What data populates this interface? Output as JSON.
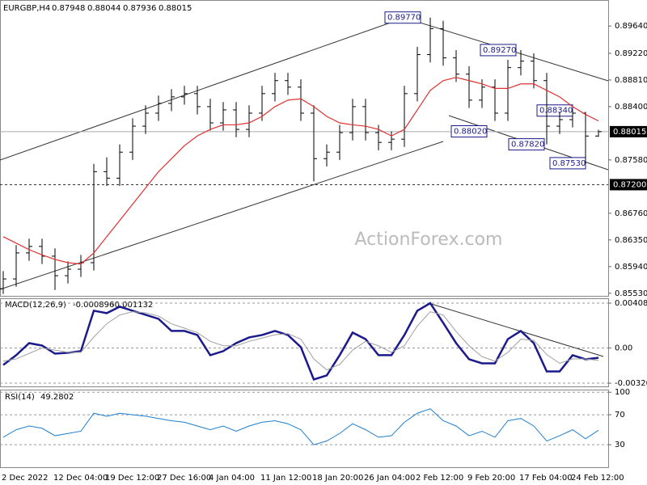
{
  "chart_data": [
    {
      "type": "ohlc",
      "title": "EURGBP,H4",
      "color": "#000000",
      "grid": false,
      "categories": [
        "2 Dec 2022",
        null,
        null,
        null,
        "12 Dec 04:00",
        null,
        null,
        null,
        "19 Dec 12:00",
        null,
        null,
        null,
        "27 Dec 16:00",
        null,
        null,
        null,
        "4 Jan 04:00",
        null,
        null,
        null,
        "11 Jan 12:00",
        null,
        null,
        null,
        "18 Jan 20:00",
        null,
        null,
        null,
        "26 Jan 04:00",
        null,
        null,
        null,
        "2 Feb 12:00",
        null,
        null,
        null,
        "9 Feb 20:00",
        null,
        null,
        null,
        "17 Feb 04:00",
        null,
        null,
        null,
        "24 Feb 12:00",
        null,
        null
      ],
      "open": [
        0.856,
        0.8575,
        0.8615,
        0.8625,
        0.861,
        0.858,
        0.859,
        0.86,
        0.874,
        0.873,
        0.877,
        0.881,
        0.883,
        0.8845,
        0.8855,
        0.886,
        0.884,
        0.8815,
        0.8835,
        0.8805,
        0.883,
        0.886,
        0.888,
        0.887,
        0.883,
        0.876,
        0.877,
        0.88,
        0.884,
        0.88,
        0.8785,
        0.879,
        0.886,
        0.892,
        0.896,
        0.8915,
        0.889,
        0.885,
        0.887,
        0.883,
        0.89,
        0.891,
        0.888,
        0.881,
        0.882,
        0.883,
        0.87948
      ],
      "high": [
        0.8587,
        0.8627,
        0.8637,
        0.8637,
        0.8622,
        0.8602,
        0.8612,
        0.8752,
        0.8762,
        0.8782,
        0.8822,
        0.8842,
        0.8857,
        0.8867,
        0.8872,
        0.8872,
        0.8852,
        0.8847,
        0.8847,
        0.8842,
        0.8872,
        0.8892,
        0.8892,
        0.8882,
        0.8842,
        0.8782,
        0.8812,
        0.8852,
        0.8852,
        0.8812,
        0.8802,
        0.8872,
        0.8932,
        0.8977,
        0.8972,
        0.8927,
        0.8902,
        0.8882,
        0.8882,
        0.8912,
        0.8927,
        0.8922,
        0.8892,
        0.8832,
        0.8834,
        0.8832,
        0.88044
      ],
      "low": [
        0.8552,
        0.8563,
        0.8603,
        0.8598,
        0.8558,
        0.8568,
        0.8578,
        0.8588,
        0.8718,
        0.8718,
        0.8758,
        0.8798,
        0.8818,
        0.8833,
        0.8843,
        0.8828,
        0.8803,
        0.8803,
        0.8793,
        0.8793,
        0.8818,
        0.8848,
        0.8858,
        0.8818,
        0.8725,
        0.8748,
        0.8758,
        0.8788,
        0.8788,
        0.8773,
        0.8773,
        0.8778,
        0.8848,
        0.8908,
        0.8903,
        0.8878,
        0.8838,
        0.8838,
        0.8818,
        0.8818,
        0.8888,
        0.8868,
        0.8782,
        0.8798,
        0.8808,
        0.8753,
        0.87936
      ],
      "close": [
        0.8575,
        0.8615,
        0.8625,
        0.861,
        0.858,
        0.859,
        0.86,
        0.874,
        0.873,
        0.877,
        0.881,
        0.883,
        0.8845,
        0.8855,
        0.886,
        0.884,
        0.8815,
        0.8835,
        0.8805,
        0.883,
        0.886,
        0.888,
        0.887,
        0.883,
        0.876,
        0.877,
        0.88,
        0.884,
        0.88,
        0.8785,
        0.879,
        0.886,
        0.892,
        0.896,
        0.8915,
        0.889,
        0.885,
        0.887,
        0.883,
        0.89,
        0.891,
        0.888,
        0.881,
        0.882,
        0.883,
        0.87948,
        0.88015
      ],
      "ma": {
        "color": "#e03030",
        "values": [
          0.864,
          0.863,
          0.862,
          0.8612,
          0.8605,
          0.86,
          0.8598,
          0.8615,
          0.864,
          0.8665,
          0.869,
          0.8715,
          0.874,
          0.876,
          0.878,
          0.8795,
          0.8805,
          0.8812,
          0.8812,
          0.8815,
          0.8825,
          0.884,
          0.885,
          0.8852,
          0.884,
          0.8825,
          0.8815,
          0.8812,
          0.881,
          0.8805,
          0.8795,
          0.8805,
          0.8835,
          0.8865,
          0.888,
          0.8885,
          0.888,
          0.8875,
          0.8868,
          0.8868,
          0.8875,
          0.8875,
          0.8865,
          0.8855,
          0.884,
          0.8828,
          0.8818
        ]
      },
      "ylim": [
        0.8549,
        0.9004
      ],
      "yticks": [
        {
          "value": 0.8964,
          "label": "0.89640"
        },
        {
          "value": 0.8922,
          "label": "0.89220"
        },
        {
          "value": 0.8881,
          "label": "0.88810"
        },
        {
          "value": 0.884,
          "label": "0.88400"
        },
        {
          "value": 0.8758,
          "label": "0.87580"
        },
        {
          "value": 0.8676,
          "label": "0.86760"
        },
        {
          "value": 0.8635,
          "label": "0.86350"
        },
        {
          "value": 0.8594,
          "label": "0.85940"
        },
        {
          "value": 0.8553,
          "label": "0.85530"
        }
      ],
      "levels": [
        {
          "value": 0.872,
          "label": "0.87200"
        }
      ],
      "annotations": [
        {
          "value": 0.8977,
          "label": "0.89770"
        },
        {
          "value": 0.8927,
          "label": "0.89270"
        },
        {
          "value": 0.8802,
          "label": "0.88020"
        },
        {
          "value": 0.8782,
          "label": "0.87820"
        },
        {
          "value": 0.8834,
          "label": "0.88340"
        },
        {
          "value": 0.8753,
          "label": "0.87530"
        }
      ],
      "watermark": "ActionForex.com"
    },
    {
      "type": "line",
      "title": "MACD(12,26,9)",
      "series": [
        {
          "color": "#1a1a8c",
          "values": [
            -0.00155,
            -0.00066,
            0.00044,
            0.00022,
            -0.00052,
            -0.00044,
            -0.00029,
            0.00339,
            0.00317,
            0.00376,
            0.00339,
            0.00302,
            0.00265,
            0.00155,
            0.00155,
            0.00118,
            -0.00066,
            -0.00029,
            0.00044,
            0.00096,
            0.00118,
            0.00155,
            0.00118,
            7e-05,
            -0.00287,
            -0.0025,
            -0.00066,
            0.0014,
            0.00081,
            -0.00066,
            -0.00066,
            0.00118,
            0.00339,
            0.00408,
            0.00228,
            0.00044,
            -0.00103,
            -0.0014,
            -0.0014,
            0.00081,
            0.00155,
            0.00044,
            -0.00214,
            -0.00214,
            -0.00066,
            -0.00103,
            -0.000896
          ]
        },
        {
          "color": "#a0a0a0",
          "values": [
            -0.0012,
            -0.001,
            -0.0005,
            0.0,
            -0.0002,
            -0.0004,
            -0.0004,
            0.001,
            0.0022,
            0.003,
            0.0033,
            0.0032,
            0.0029,
            0.0022,
            0.0018,
            0.0014,
            0.0006,
            0.0002,
            0.0002,
            0.0006,
            0.0009,
            0.0012,
            0.0013,
            0.0008,
            -0.001,
            -0.002,
            -0.0015,
            -0.0002,
            0.0006,
            0.0002,
            -0.0004,
            0.0002,
            0.002,
            0.0033,
            0.003,
            0.0015,
            0.0002,
            -0.0008,
            -0.0012,
            -0.0004,
            0.0008,
            0.0007,
            -0.0006,
            -0.0014,
            -0.001,
            -0.001,
            -0.001132
          ]
        }
      ],
      "ylim": [
        -0.0035,
        0.004525
      ],
      "yticks": [
        {
          "value": 0.004083,
          "label": "0.004083"
        },
        {
          "value": 0,
          "label": "0.00"
        },
        {
          "value": -0.003209,
          "label": "-0.003209"
        }
      ]
    },
    {
      "type": "line",
      "title": "RSI(14)",
      "series": [
        {
          "color": "#1e7fd0",
          "values": [
            40,
            50,
            55,
            52,
            42,
            45,
            48,
            72,
            68,
            72,
            70,
            68,
            65,
            62,
            60,
            55,
            50,
            55,
            48,
            55,
            60,
            62,
            58,
            50,
            30,
            35,
            45,
            58,
            50,
            40,
            42,
            60,
            72,
            78,
            62,
            55,
            42,
            48,
            40,
            62,
            65,
            55,
            35,
            42,
            50,
            38,
            49.2802
          ]
        }
      ],
      "ylim": [
        0,
        103.5
      ],
      "yticks": [
        100,
        70,
        30
      ]
    }
  ]
}
